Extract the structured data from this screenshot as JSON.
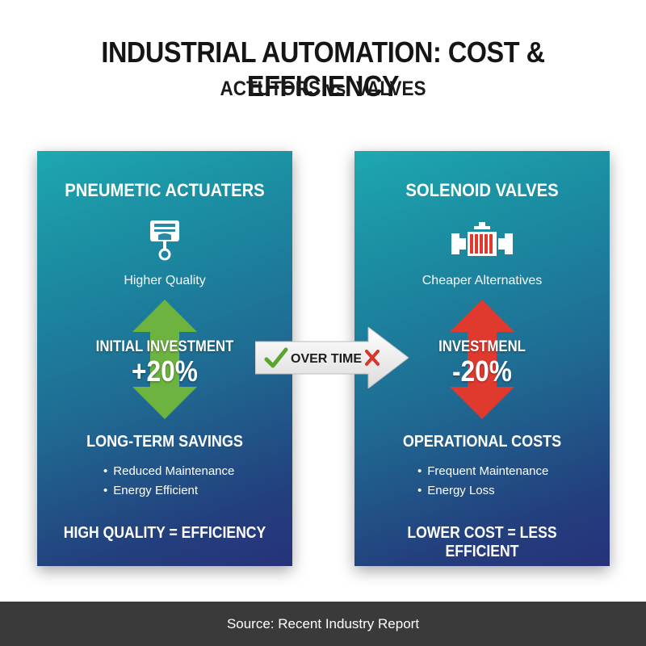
{
  "header": {
    "title": "INDUSTRIAL AUTOMATION: COST & EFFICIENCY",
    "subtitle": "ACTUTORS vs. VALVES"
  },
  "left_card": {
    "title": "PNEUMETIC ACTUATERS",
    "icon": "piston-icon",
    "caption": "Higher Quality",
    "arrow_icon": "double-arrow-icon",
    "arrow_color": "#6cb33f",
    "metric_label": "INITIAL INVESTMENT",
    "metric_value": "+20%",
    "section_title": "LONG-TERM SAVINGS",
    "bullets": [
      "Reduced Maintenance",
      "Energy Efficient"
    ],
    "footer": "HIGH QUALITY = EFFICIENCY"
  },
  "right_card": {
    "title": "SOLENOID VALVES",
    "icon": "valve-icon",
    "caption": "Cheaper Alternatives",
    "arrow_icon": "double-arrow-icon",
    "arrow_color": "#e03a2f",
    "metric_label": "INVESTMENL",
    "metric_value": "-20%",
    "section_title": "OPERATIONAL COSTS",
    "bullets": [
      "Frequent Maintenance",
      "Energy Loss"
    ],
    "footer": "LOWER COST = LESS EFFICIENT"
  },
  "connector": {
    "label": "OVER TIME",
    "check_icon": "checkmark-icon",
    "cross_icon": "cross-icon",
    "check_color": "#5aa532",
    "cross_color": "#d9362b"
  },
  "footer": {
    "source": "Source: Recent Industry Report"
  }
}
